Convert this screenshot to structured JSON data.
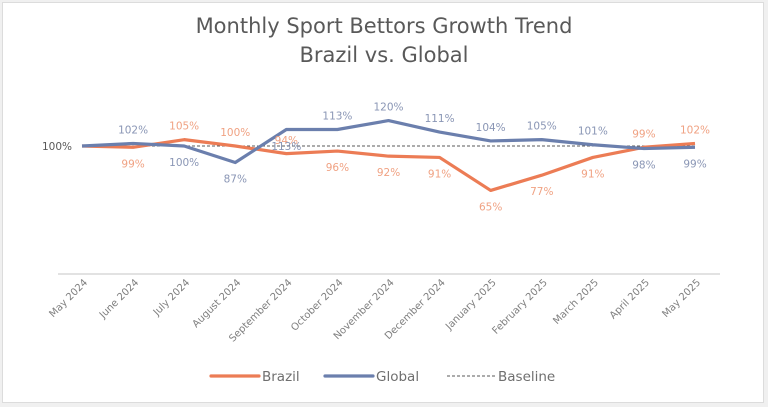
{
  "chart_data": {
    "type": "line",
    "title": "Monthly Sport Bettors Growth Trend",
    "subtitle": "Brazil vs. Global",
    "xlabel": "",
    "ylabel": "",
    "categories": [
      "May 2024",
      "June 2024",
      "July 2024",
      "August 2024",
      "September 2024",
      "October 2024",
      "November 2024",
      "December 2024",
      "January 2025",
      "February 2025",
      "March 2025",
      "April 2025",
      "May 2025"
    ],
    "series": [
      {
        "name": "Brazil",
        "color": "#ec7c55",
        "values": [
          100,
          99,
          105,
          100,
          94,
          96,
          92,
          91,
          65,
          77,
          91,
          99,
          102
        ],
        "labels": [
          "",
          "99%",
          "105%",
          "100%",
          "94%",
          "96%",
          "92%",
          "91%",
          "65%",
          "77%",
          "91%",
          "99%",
          "102%"
        ]
      },
      {
        "name": "Global",
        "color": "#6b7fad",
        "values": [
          100,
          102,
          100,
          87,
          113,
          113,
          120,
          111,
          104,
          105,
          101,
          98,
          99
        ],
        "labels": [
          "100%",
          "102%",
          "100%",
          "87%",
          "113%",
          "113%",
          "120%",
          "111%",
          "104%",
          "105%",
          "101%",
          "98%",
          "99%"
        ]
      },
      {
        "name": "Baseline",
        "color": "#595959",
        "style": "dashed",
        "values": [
          100,
          100,
          100,
          100,
          100,
          100,
          100,
          100,
          100,
          100,
          100,
          100,
          100
        ]
      }
    ],
    "ylim": [
      60,
      125
    ],
    "grid": false,
    "y_axis_visible": false,
    "legend": "bottom-center",
    "legend_entries": [
      "Brazil",
      "Global",
      "Baseline"
    ]
  }
}
